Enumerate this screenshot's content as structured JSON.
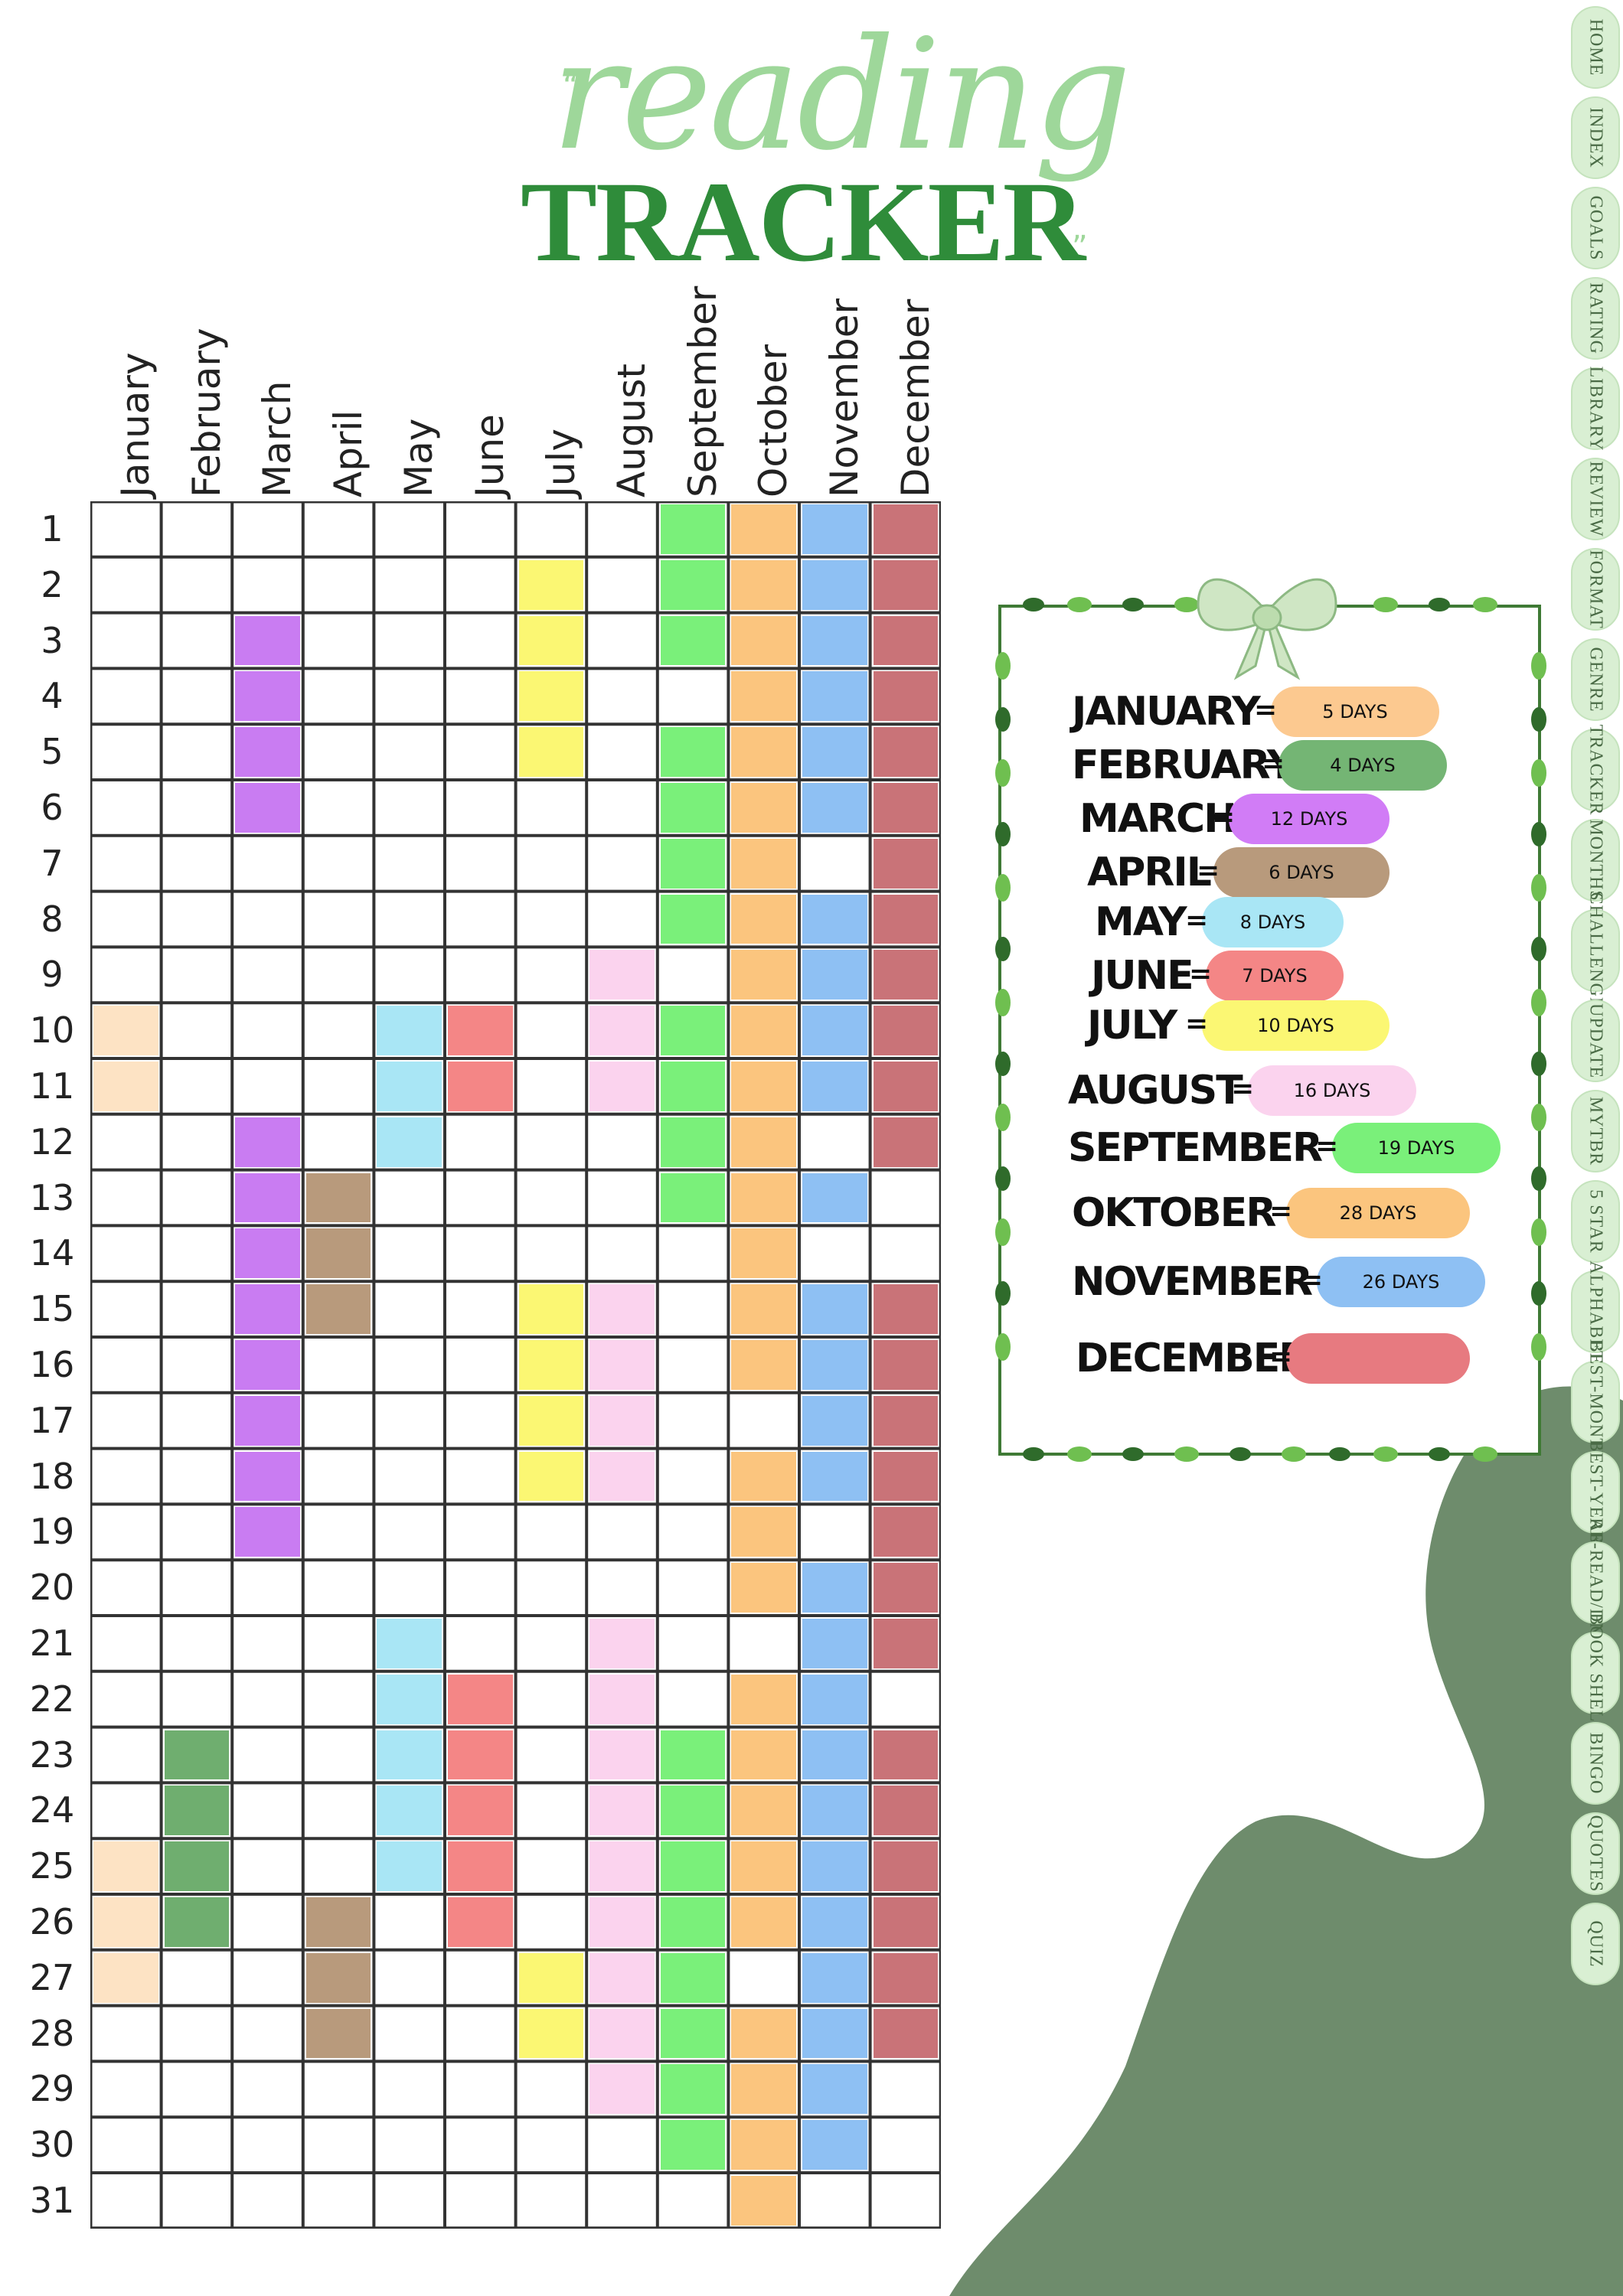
{
  "title": {
    "script": "reading",
    "main": "TRACKER"
  },
  "months": [
    "January",
    "February",
    "March",
    "April",
    "May",
    "June",
    "July",
    "August",
    "September",
    "October",
    "November",
    "December"
  ],
  "days": [
    "1",
    "2",
    "3",
    "4",
    "5",
    "6",
    "7",
    "8",
    "9",
    "10",
    "11",
    "12",
    "13",
    "14",
    "15",
    "16",
    "17",
    "18",
    "19",
    "20",
    "21",
    "22",
    "23",
    "24",
    "25",
    "26",
    "27",
    "28",
    "29",
    "30",
    "31"
  ],
  "colors": {
    "January": "#fde3c4",
    "February": "#6fae6f",
    "March": "#c97cf2",
    "April": "#b89a7c",
    "May": "#a9e6f5",
    "June": "#f48686",
    "July": "#fbf773",
    "August": "#fbd3ee",
    "September": "#7af07a",
    "October": "#fbc57e",
    "November": "#8ec0f3",
    "December": "#c97378"
  },
  "reading_days": {
    "January": [
      10,
      11,
      25,
      26,
      27
    ],
    "February": [
      23,
      24,
      25,
      26
    ],
    "March": [
      3,
      4,
      5,
      6,
      12,
      13,
      14,
      15,
      16,
      17,
      18,
      19
    ],
    "April": [
      13,
      14,
      15,
      26,
      27,
      28
    ],
    "May": [
      10,
      11,
      12,
      21,
      22,
      23,
      24,
      25
    ],
    "June": [
      10,
      11,
      22,
      23,
      24,
      25,
      26
    ],
    "July": [
      2,
      3,
      4,
      5,
      15,
      16,
      17,
      18,
      27,
      28
    ],
    "August": [
      9,
      10,
      11,
      15,
      16,
      17,
      18,
      21,
      22,
      23,
      24,
      25,
      26,
      27,
      28,
      29
    ],
    "September": [
      1,
      2,
      3,
      5,
      6,
      7,
      8,
      10,
      11,
      12,
      13,
      23,
      24,
      25,
      26,
      27,
      28,
      29,
      30
    ],
    "October": [
      1,
      2,
      3,
      4,
      5,
      6,
      7,
      8,
      9,
      10,
      11,
      12,
      13,
      14,
      15,
      16,
      18,
      19,
      20,
      22,
      23,
      24,
      25,
      26,
      28,
      29,
      30,
      31
    ],
    "November": [
      1,
      2,
      3,
      4,
      5,
      6,
      8,
      9,
      10,
      11,
      13,
      15,
      16,
      17,
      18,
      20,
      21,
      22,
      23,
      24,
      25,
      26,
      27,
      28,
      29,
      30
    ],
    "December": [
      1,
      2,
      3,
      4,
      5,
      6,
      7,
      8,
      9,
      10,
      11,
      12,
      15,
      16,
      17,
      18,
      19,
      20,
      21,
      23,
      24,
      25,
      26,
      27,
      28
    ]
  },
  "legend": {
    "items": [
      {
        "month": "JANUARY",
        "count": "5 DAYS"
      },
      {
        "month": "FEBRUARY",
        "count": "4 DAYS"
      },
      {
        "month": "MARCH",
        "count": "12 DAYS"
      },
      {
        "month": "APRIL",
        "count": "6 DAYS"
      },
      {
        "month": "MAY",
        "count": "8 DAYS"
      },
      {
        "month": "JUNE",
        "count": "7 DAYS"
      },
      {
        "month": "JULY",
        "count": "10 DAYS"
      },
      {
        "month": "AUGUST",
        "count": "16 DAYS"
      },
      {
        "month": "SEPTEMBER",
        "count": "19 DAYS"
      },
      {
        "month": "OKTOBER",
        "count": "28 DAYS"
      },
      {
        "month": "NOVEMBER",
        "count": "26 DAYS"
      },
      {
        "month": "DECEMBER",
        "count": ""
      }
    ],
    "equals": "="
  },
  "sidenav": {
    "tabs": [
      "HOME",
      "INDEX",
      "GOALS",
      "RATING",
      "LIBRARY",
      "REVIEW",
      "FORMAT",
      "GENRE",
      "TRACKER",
      "MONTHS",
      "CHALLENGE",
      "UPDATE",
      "MYTBR",
      "5 STAR",
      "ALPHABET",
      "BEST-MONTH",
      "BEST-YEAR",
      "RE-READ/DNF",
      "BOOK SHELF",
      "BINGO",
      "QUOTES",
      "QUIZ"
    ]
  }
}
